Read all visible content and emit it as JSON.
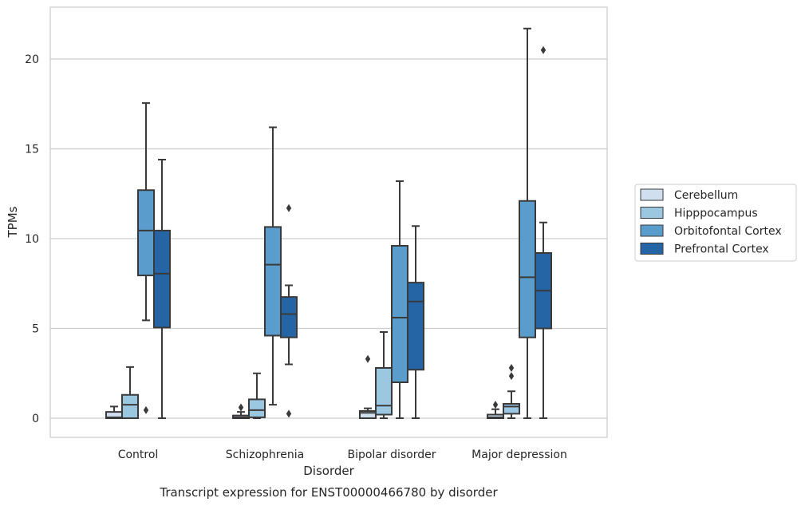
{
  "chart_data": {
    "type": "boxplot",
    "xlabel": "Disorder",
    "ylabel": "TPMs",
    "caption": "Transcript expression for ENST00000466780 by disorder",
    "ylim": [
      -1,
      22.7
    ],
    "yticks": [
      "0",
      "5",
      "10",
      "15",
      "20"
    ],
    "grid": "horizontal",
    "legend_position": "right",
    "categories": [
      "Control",
      "Schizophrenia",
      "Bipolar disorder",
      "Major depression"
    ],
    "series": [
      {
        "name": "Cerebellum",
        "color": "#d0dff0",
        "boxes": [
          {
            "whisker_low": 0,
            "q1": 0,
            "median": 0.05,
            "q3": 0.35,
            "whisker_high": 0.65,
            "outliers": []
          },
          {
            "whisker_low": 0,
            "q1": 0,
            "median": 0.05,
            "q3": 0.15,
            "whisker_high": 0.35,
            "outliers": [
              0.6
            ]
          },
          {
            "whisker_low": 0,
            "q1": 0,
            "median": 0.3,
            "q3": 0.4,
            "whisker_high": 0.55,
            "outliers": [
              3.3
            ]
          },
          {
            "whisker_low": 0,
            "q1": 0,
            "median": 0.05,
            "q3": 0.2,
            "whisker_high": 0.5,
            "outliers": [
              0.75
            ]
          }
        ]
      },
      {
        "name": "Hipppocampus",
        "color": "#9cc7e1",
        "boxes": [
          {
            "whisker_low": 0,
            "q1": 0,
            "median": 0.75,
            "q3": 1.3,
            "whisker_high": 2.85,
            "outliers": []
          },
          {
            "whisker_low": 0,
            "q1": 0.05,
            "median": 0.45,
            "q3": 1.05,
            "whisker_high": 2.5,
            "outliers": []
          },
          {
            "whisker_low": 0,
            "q1": 0.2,
            "median": 0.7,
            "q3": 2.8,
            "whisker_high": 4.8,
            "outliers": []
          },
          {
            "whisker_low": 0,
            "q1": 0.25,
            "median": 0.65,
            "q3": 0.8,
            "whisker_high": 1.5,
            "outliers": [
              2.35,
              2.8
            ]
          }
        ]
      },
      {
        "name": "Orbitofontal Cortex",
        "color": "#5a9ccc",
        "boxes": [
          {
            "whisker_low": 5.45,
            "q1": 7.95,
            "median": 10.45,
            "q3": 12.7,
            "whisker_high": 17.55,
            "outliers": [
              0.45
            ]
          },
          {
            "whisker_low": 0.75,
            "q1": 4.6,
            "median": 8.55,
            "q3": 10.65,
            "whisker_high": 16.2,
            "outliers": []
          },
          {
            "whisker_low": 0,
            "q1": 2.0,
            "median": 5.6,
            "q3": 9.6,
            "whisker_high": 13.2,
            "outliers": []
          },
          {
            "whisker_low": 0,
            "q1": 4.5,
            "median": 7.85,
            "q3": 12.1,
            "whisker_high": 21.7,
            "outliers": []
          }
        ]
      },
      {
        "name": "Prefrontal Cortex",
        "color": "#2565a6",
        "boxes": [
          {
            "whisker_low": 0,
            "q1": 5.05,
            "median": 8.05,
            "q3": 10.45,
            "whisker_high": 14.4,
            "outliers": []
          },
          {
            "whisker_low": 3.0,
            "q1": 4.5,
            "median": 5.8,
            "q3": 6.75,
            "whisker_high": 7.4,
            "outliers": [
              0.25,
              11.7
            ]
          },
          {
            "whisker_low": 0,
            "q1": 2.7,
            "median": 6.5,
            "q3": 7.55,
            "whisker_high": 10.7,
            "outliers": []
          },
          {
            "whisker_low": 0,
            "q1": 5.0,
            "median": 7.1,
            "q3": 9.2,
            "whisker_high": 10.9,
            "outliers": [
              20.5
            ]
          }
        ]
      }
    ]
  }
}
